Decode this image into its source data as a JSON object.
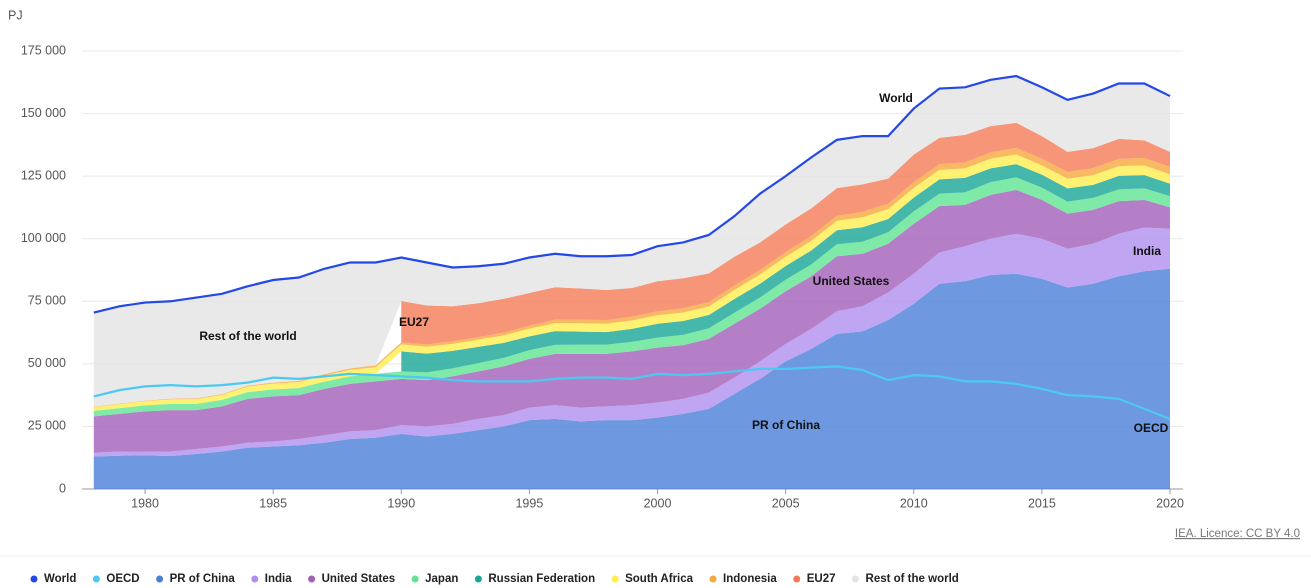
{
  "chart_data": {
    "type": "stacked-area",
    "y_unit": "PJ",
    "source": "IEA. Licence: CC BY 4.0",
    "annotations": [
      "World",
      "Rest of the world",
      "EU27",
      "United States",
      "India",
      "PR of China",
      "OECD"
    ],
    "x": [
      1978,
      1979,
      1980,
      1981,
      1982,
      1983,
      1984,
      1985,
      1986,
      1987,
      1988,
      1989,
      1990,
      1991,
      1992,
      1993,
      1994,
      1995,
      1996,
      1997,
      1998,
      1999,
      2000,
      2001,
      2002,
      2003,
      2004,
      2005,
      2006,
      2007,
      2008,
      2009,
      2010,
      2011,
      2012,
      2013,
      2014,
      2015,
      2016,
      2017,
      2018,
      2019,
      2020
    ],
    "xlim": [
      1978,
      2020
    ],
    "xticks": [
      1980,
      1985,
      1990,
      1995,
      2000,
      2005,
      2010,
      2015,
      2020
    ],
    "ylim": [
      0,
      175000
    ],
    "yticks": [
      0,
      {
        "value": 25000,
        "label": "25 000"
      },
      {
        "value": 50000,
        "label": "50 000"
      },
      {
        "value": 75000,
        "label": "75 000"
      },
      {
        "value": 100000,
        "label": "100 000"
      },
      {
        "value": 125000,
        "label": "125 000"
      },
      {
        "value": 150000,
        "label": "150 000"
      },
      {
        "value": 175000,
        "label": "175 000"
      }
    ],
    "grid": true,
    "legend": "bottom",
    "series": [
      {
        "name": "World",
        "type": "line",
        "color": "#2448e6",
        "values": [
          70500,
          73000,
          74500,
          75000,
          76500,
          78000,
          81000,
          83500,
          84500,
          88000,
          90500,
          90500,
          92500,
          90500,
          88500,
          89000,
          90000,
          92500,
          94000,
          93000,
          93000,
          93500,
          97000,
          98500,
          101500,
          109000,
          118000,
          125000,
          132500,
          139500,
          141000,
          141000,
          152000,
          160000,
          160500,
          163500,
          165000,
          160500,
          155500,
          158000,
          162000,
          162000,
          157000
        ]
      },
      {
        "name": "OECD",
        "type": "line",
        "color": "#4cc9f2",
        "values": [
          37000,
          39500,
          41000,
          41500,
          41000,
          41500,
          42500,
          44500,
          44000,
          45000,
          46000,
          45500,
          45000,
          44500,
          43500,
          43000,
          43000,
          43000,
          44000,
          44500,
          44500,
          44000,
          46000,
          45500,
          46000,
          47000,
          48000,
          48000,
          48500,
          49000,
          47500,
          43500,
          45500,
          45000,
          43000,
          43000,
          42000,
          40000,
          37500,
          37000,
          36000,
          32000,
          28000
        ]
      },
      {
        "name": "PR of China",
        "type": "area",
        "color": "#4a7fd9",
        "values": [
          13000,
          13300,
          13500,
          13200,
          14000,
          15000,
          16500,
          17000,
          17500,
          18500,
          20000,
          20500,
          22000,
          21000,
          22000,
          23500,
          25000,
          27500,
          28000,
          27000,
          27500,
          27500,
          28500,
          30000,
          32000,
          38000,
          44000,
          51000,
          56000,
          62000,
          63000,
          67500,
          74000,
          82000,
          83000,
          85500,
          86000,
          84000,
          80500,
          82000,
          85000,
          87000,
          88000
        ]
      },
      {
        "name": "India",
        "type": "area",
        "color": "#b08ef0",
        "values": [
          1500,
          1700,
          1500,
          1800,
          2000,
          2000,
          2000,
          2000,
          2500,
          3000,
          3000,
          3000,
          3500,
          4000,
          4000,
          4500,
          4500,
          5000,
          5500,
          5500,
          5500,
          6000,
          6000,
          6000,
          6500,
          6500,
          7000,
          7000,
          8000,
          9000,
          10000,
          11000,
          12000,
          12500,
          14000,
          14500,
          16000,
          16000,
          15500,
          16000,
          17000,
          17500,
          16000
        ]
      },
      {
        "name": "United States",
        "type": "area",
        "color": "#a35fba",
        "values": [
          14500,
          15000,
          16000,
          16500,
          15500,
          16000,
          17500,
          18000,
          17500,
          18500,
          19000,
          19500,
          18500,
          18500,
          19000,
          19000,
          19500,
          19500,
          20500,
          21500,
          21000,
          21500,
          22000,
          21500,
          21500,
          21500,
          21000,
          21000,
          21000,
          22000,
          21000,
          19500,
          20000,
          18500,
          16500,
          17500,
          17500,
          15500,
          14000,
          13500,
          13000,
          11000,
          8500
        ]
      },
      {
        "name": "Japan",
        "type": "area",
        "color": "#5fe592",
        "values": [
          2200,
          2300,
          2400,
          2500,
          2500,
          2600,
          2700,
          2800,
          2800,
          2900,
          3000,
          3000,
          3000,
          3100,
          3200,
          3300,
          3400,
          3500,
          3600,
          3700,
          3700,
          3800,
          4000,
          4100,
          4200,
          4400,
          4500,
          4600,
          4700,
          4800,
          4800,
          4600,
          4900,
          5000,
          5000,
          5100,
          5000,
          4900,
          4800,
          4800,
          4700,
          4600,
          4500
        ]
      },
      {
        "name": "Russian Federation",
        "type": "area",
        "color": "#16a696",
        "values": [
          null,
          null,
          null,
          null,
          null,
          null,
          null,
          null,
          null,
          null,
          null,
          null,
          8000,
          7500,
          7000,
          6500,
          6000,
          5500,
          5500,
          5200,
          5000,
          5200,
          5500,
          5500,
          5300,
          5500,
          5500,
          5500,
          5600,
          5600,
          5800,
          5300,
          5500,
          5700,
          5800,
          5500,
          5300,
          5200,
          5300,
          5200,
          5400,
          5300,
          5000
        ]
      },
      {
        "name": "South Africa",
        "type": "area",
        "color": "#ffee4d",
        "values": [
          1500,
          1600,
          1700,
          1800,
          1900,
          2000,
          2200,
          2300,
          2400,
          2500,
          2600,
          2700,
          2800,
          2800,
          2800,
          2900,
          3000,
          3100,
          3200,
          3300,
          3300,
          3300,
          3400,
          3400,
          3400,
          3600,
          3700,
          3700,
          3800,
          3800,
          4000,
          3900,
          3900,
          3800,
          3800,
          3900,
          3900,
          3700,
          3900,
          3900,
          3900,
          3900,
          3700
        ]
      },
      {
        "name": "Indonesia",
        "type": "area",
        "color": "#f7a83c",
        "values": [
          200,
          200,
          200,
          300,
          300,
          300,
          400,
          400,
          500,
          500,
          600,
          700,
          800,
          900,
          1000,
          1000,
          1100,
          1200,
          1300,
          1400,
          1500,
          1500,
          1600,
          1700,
          1700,
          1800,
          1800,
          1900,
          2000,
          2000,
          2100,
          2200,
          2300,
          2300,
          2400,
          2500,
          2600,
          2700,
          2700,
          2800,
          2900,
          3000,
          3000
        ]
      },
      {
        "name": "EU27",
        "type": "area",
        "color": "#f47a55",
        "values": [
          null,
          null,
          null,
          null,
          null,
          null,
          null,
          null,
          null,
          null,
          null,
          null,
          16500,
          15500,
          14000,
          13500,
          13500,
          13000,
          13000,
          12500,
          12000,
          11500,
          12000,
          12000,
          11500,
          11500,
          11000,
          11000,
          11000,
          11000,
          11000,
          10000,
          11000,
          10500,
          11000,
          10500,
          10000,
          9000,
          8000,
          8000,
          8000,
          7000,
          6000
        ]
      },
      {
        "name": "Rest of the world",
        "type": "area",
        "color": "#e3e3e3",
        "values": [
          37600,
          38900,
          39200,
          38900,
          40300,
          40100,
          39700,
          41000,
          41300,
          42100,
          42300,
          41100,
          17400,
          17200,
          15500,
          14800,
          14000,
          14200,
          13400,
          12900,
          13500,
          13200,
          14000,
          14300,
          15400,
          16200,
          19500,
          19300,
          20400,
          19300,
          19300,
          17000,
          18400,
          19700,
          19000,
          18500,
          18700,
          19500,
          20800,
          21800,
          22100,
          22700,
          22300
        ]
      }
    ]
  }
}
